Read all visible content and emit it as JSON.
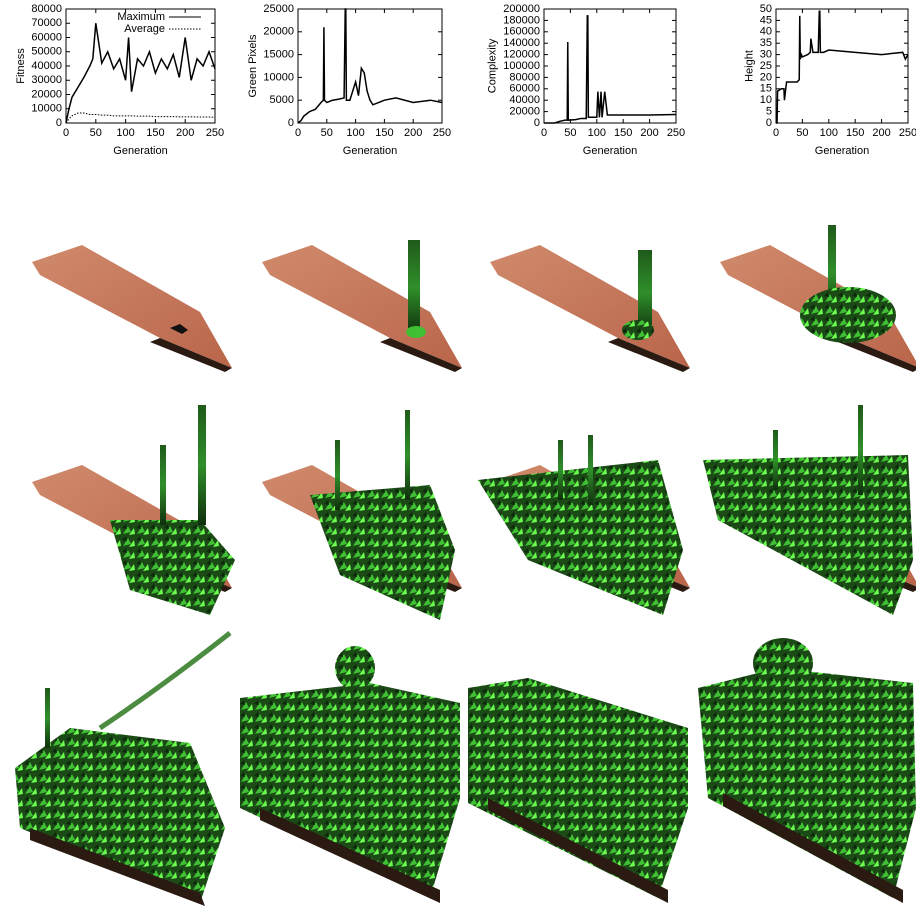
{
  "chart_data": [
    {
      "type": "line",
      "xlabel": "Generation",
      "ylabel": "Fitness",
      "legend": "top-right",
      "xlim": [
        0,
        250
      ],
      "xticks": [
        0,
        50,
        100,
        150,
        200,
        250
      ],
      "ylim": [
        0,
        80000
      ],
      "yticks": [
        0,
        10000,
        20000,
        30000,
        40000,
        50000,
        60000,
        70000,
        80000
      ],
      "x": [
        0,
        5,
        10,
        20,
        30,
        40,
        45,
        50,
        60,
        70,
        80,
        90,
        100,
        105,
        110,
        120,
        130,
        140,
        150,
        160,
        170,
        180,
        190,
        200,
        210,
        220,
        230,
        240,
        250
      ],
      "series": [
        {
          "name": "Maximum",
          "color": "#000000",
          "line_style": "solid",
          "values": [
            0,
            10000,
            18000,
            25000,
            32000,
            40000,
            45000,
            70000,
            42000,
            50000,
            38000,
            45000,
            30000,
            60000,
            22000,
            45000,
            40000,
            50000,
            35000,
            45000,
            38000,
            48000,
            32000,
            60000,
            30000,
            45000,
            40000,
            50000,
            38000
          ]
        },
        {
          "name": "Average",
          "color": "#000000",
          "line_style": "dotted",
          "values": [
            0,
            3000,
            5000,
            7000,
            7000,
            6000,
            6000,
            6000,
            5500,
            5500,
            5000,
            5000,
            5000,
            5000,
            5000,
            4800,
            4800,
            4800,
            4500,
            4500,
            4500,
            4500,
            4300,
            4300,
            4300,
            4200,
            4200,
            4200,
            4000
          ]
        }
      ]
    },
    {
      "type": "line",
      "xlabel": "Generation",
      "ylabel": "Green Pixels",
      "xlim": [
        0,
        250
      ],
      "xticks": [
        0,
        50,
        100,
        150,
        200,
        250
      ],
      "ylim": [
        0,
        25000
      ],
      "yticks": [
        0,
        5000,
        10000,
        15000,
        20000,
        25000
      ],
      "x": [
        0,
        5,
        10,
        20,
        30,
        40,
        44,
        45,
        46,
        50,
        60,
        70,
        80,
        82,
        83,
        84,
        90,
        100,
        105,
        110,
        115,
        120,
        125,
        130,
        150,
        170,
        200,
        230,
        250
      ],
      "series": [
        {
          "color": "#000000",
          "line_style": "solid",
          "values": [
            0,
            500,
            1500,
            2500,
            3000,
            4500,
            5000,
            21000,
            5000,
            4500,
            5000,
            5200,
            5500,
            25000,
            25000,
            5000,
            5000,
            9000,
            6000,
            12000,
            11000,
            7000,
            5000,
            4000,
            5000,
            5500,
            4500,
            5000,
            4500
          ]
        }
      ]
    },
    {
      "type": "line",
      "xlabel": "Generation",
      "ylabel": "Complexity",
      "xlim": [
        0,
        250
      ],
      "xticks": [
        0,
        50,
        100,
        150,
        200,
        250
      ],
      "ylim": [
        0,
        200000
      ],
      "yticks": [
        0,
        20000,
        40000,
        60000,
        80000,
        100000,
        120000,
        140000,
        160000,
        180000,
        200000
      ],
      "x": [
        0,
        20,
        30,
        40,
        44,
        45,
        46,
        60,
        70,
        80,
        82,
        83,
        84,
        90,
        100,
        102,
        105,
        108,
        110,
        115,
        120,
        130,
        150,
        200,
        250
      ],
      "series": [
        {
          "color": "#000000",
          "line_style": "solid",
          "values": [
            0,
            0,
            3000,
            5000,
            5000,
            142000,
            5000,
            6000,
            8000,
            8000,
            188000,
            188000,
            10000,
            10000,
            10000,
            55000,
            10000,
            55000,
            10000,
            55000,
            14000,
            14000,
            14000,
            14000,
            15000
          ]
        }
      ]
    },
    {
      "type": "line",
      "xlabel": "Generation",
      "ylabel": "Height",
      "xlim": [
        0,
        250
      ],
      "xticks": [
        0,
        50,
        100,
        150,
        200,
        250
      ],
      "ylim": [
        0,
        50
      ],
      "yticks": [
        0,
        5,
        10,
        15,
        20,
        25,
        30,
        35,
        40,
        45,
        50
      ],
      "x": [
        0,
        2,
        3,
        10,
        15,
        16,
        20,
        25,
        30,
        40,
        44,
        45,
        46,
        48,
        50,
        60,
        65,
        66,
        70,
        80,
        82,
        83,
        84,
        90,
        100,
        150,
        200,
        240,
        245,
        250
      ],
      "series": [
        {
          "color": "#000000",
          "line_style": "solid",
          "values": [
            0,
            0,
            14,
            15,
            15,
            10,
            18,
            18,
            18,
            18,
            19,
            47,
            28,
            30,
            29,
            30,
            31,
            37,
            31,
            31,
            49,
            49,
            31,
            31,
            32,
            31,
            30,
            31,
            28,
            30
          ]
        }
      ]
    }
  ]
}
